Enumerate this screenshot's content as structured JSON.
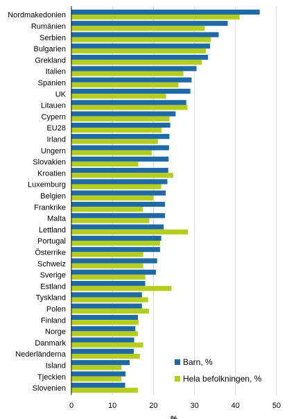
{
  "chart_data": {
    "type": "bar",
    "orientation": "horizontal",
    "categories": [
      "Nordmakedonien",
      "Rumänien",
      "Serbien",
      "Bulgarien",
      "Grekland",
      "Italien",
      "Spanien",
      "UK",
      "Litauen",
      "Cypern",
      "EU28",
      "Irland",
      "Ungern",
      "Slovakien",
      "Kroatien",
      "Luxemburg",
      "Belgien",
      "Frankrike",
      "Malta",
      "Lettland",
      "Portugal",
      "Österrike",
      "Schweiz",
      "Sverige",
      "Estland",
      "Tyskland",
      "Polen",
      "Finland",
      "Norge",
      "Danmark",
      "Nederländerna",
      "Island",
      "Tjeckien",
      "Slovenien"
    ],
    "series": [
      {
        "name": "Barn, %",
        "color": "#1f6aa5",
        "values": [
          45.9,
          38.1,
          35.9,
          33.8,
          33.3,
          30.5,
          29.3,
          29.0,
          28.0,
          25.4,
          24.1,
          23.9,
          23.8,
          23.7,
          23.6,
          23.4,
          23.0,
          22.8,
          22.8,
          22.5,
          21.9,
          21.6,
          20.9,
          20.6,
          18.0,
          17.2,
          17.2,
          16.2,
          15.6,
          15.3,
          15.2,
          14.2,
          13.2,
          13.1
        ]
      },
      {
        "name": "Hela befolkningen, %",
        "color": "#b5cd1e",
        "values": [
          41.0,
          32.5,
          34.0,
          32.8,
          31.8,
          27.3,
          26.1,
          23.1,
          28.3,
          23.9,
          22.0,
          21.1,
          19.6,
          16.3,
          24.8,
          21.9,
          20.0,
          17.4,
          19.0,
          28.4,
          21.6,
          17.5,
          17.5,
          18.0,
          24.4,
          18.7,
          18.9,
          16.4,
          16.2,
          17.5,
          16.7,
          12.2,
          12.2,
          16.2
        ]
      }
    ],
    "xlabel": "%",
    "ylabel": "",
    "title": "",
    "xlim": [
      0,
      50
    ],
    "xticks": [
      "0",
      "10",
      "20",
      "30",
      "40",
      "50"
    ],
    "grid": true,
    "legend_position": "bottom-right"
  }
}
